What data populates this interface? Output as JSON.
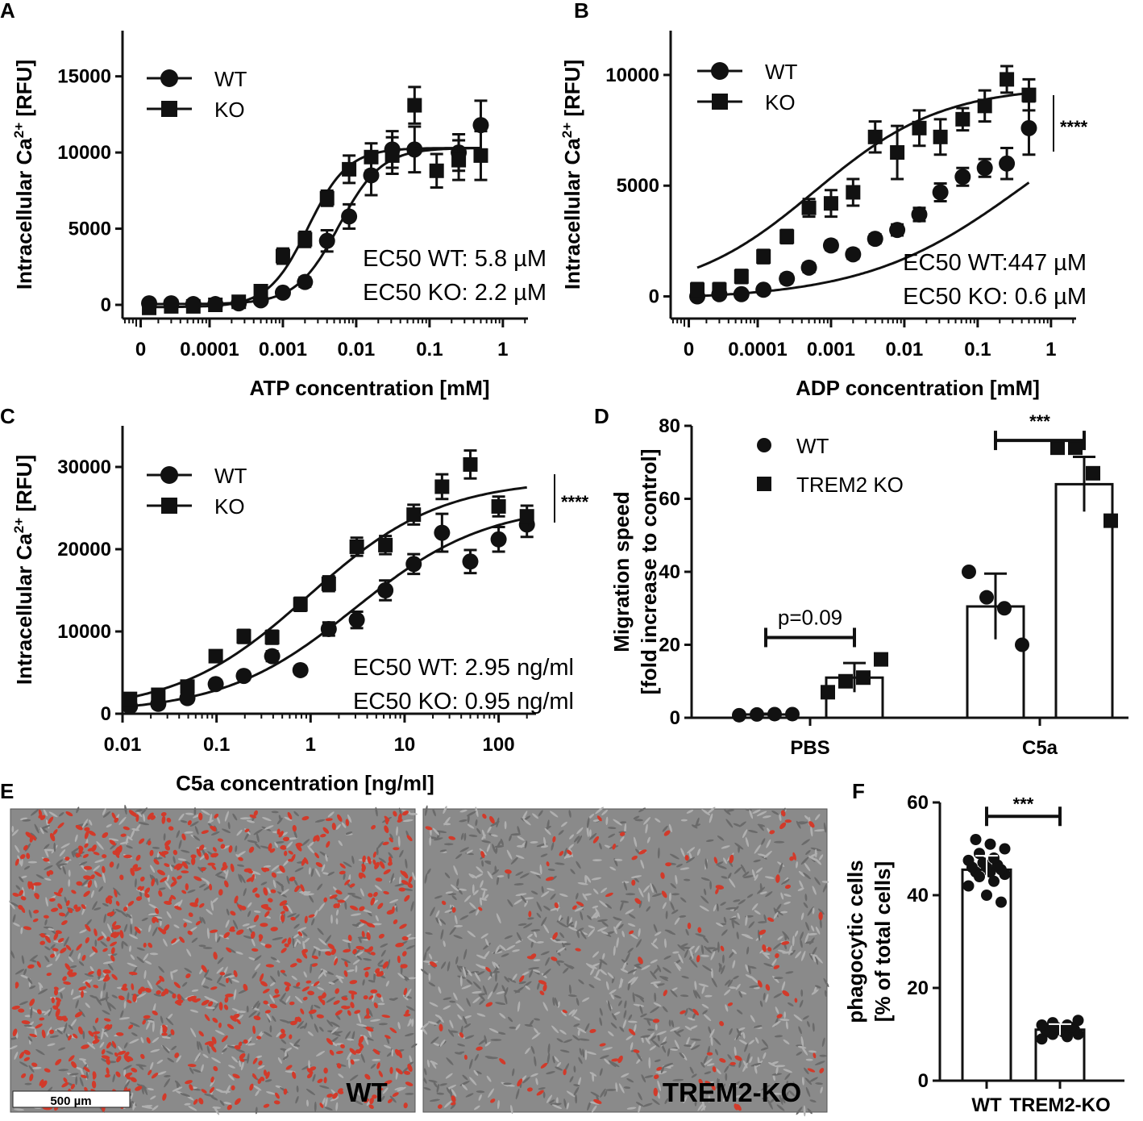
{
  "panel_letters": {
    "A": "A",
    "B": "B",
    "C": "C",
    "D": "D",
    "E": "E",
    "F": "F"
  },
  "chart_data": [
    {
      "id": "A",
      "type": "scatter",
      "ylabel": "Intracellular Ca2+ [RFU]",
      "ylabel_parts": {
        "main": "Intracellular Ca",
        "sup": "2+",
        "unit": " [RFU]"
      },
      "xlabel": "ATP concentration [mM]",
      "xscale": "log",
      "xlim": [
        6.5e-06,
        2.2
      ],
      "ylim": [
        -900,
        18000
      ],
      "xticks": [
        {
          "v": 1.15e-05,
          "label": "0"
        },
        {
          "v": 0.0001,
          "label": "0.0001"
        },
        {
          "v": 0.001,
          "label": "0.001"
        },
        {
          "v": 0.01,
          "label": "0.01"
        },
        {
          "v": 0.1,
          "label": "0.1"
        },
        {
          "v": 1,
          "label": "1"
        }
      ],
      "yticks": [
        {
          "v": 0,
          "label": "0"
        },
        {
          "v": 5000,
          "label": "5000"
        },
        {
          "v": 10000,
          "label": "10000"
        },
        {
          "v": 15000,
          "label": "15000"
        }
      ],
      "annotations": [
        "EC50 WT: 5.8 µM",
        "EC50 KO: 2.2 µM"
      ],
      "significance": "",
      "series": [
        {
          "name": "WT",
          "marker": "circle",
          "x": [
            1.5e-05,
            3e-05,
            6e-05,
            0.00012,
            0.00025,
            0.0005,
            0.001,
            0.002,
            0.004,
            0.008,
            0.016,
            0.031,
            0.0625,
            0.25,
            0.5
          ],
          "y": [
            100,
            100,
            50,
            50,
            100,
            300,
            800,
            1500,
            4200,
            5800,
            8500,
            10200,
            10200,
            10000,
            11800
          ],
          "err": [
            200,
            200,
            200,
            200,
            200,
            200,
            200,
            300,
            700,
            800,
            1300,
            1200,
            1500,
            1200,
            1600
          ],
          "fit": {
            "bottom": 50,
            "top": 10300,
            "ec50": 0.0058,
            "hill": 1.5
          }
        },
        {
          "name": "KO",
          "marker": "square",
          "x": [
            1.5e-05,
            3e-05,
            6e-05,
            0.00012,
            0.00025,
            0.0005,
            0.001,
            0.002,
            0.004,
            0.008,
            0.016,
            0.031,
            0.0625,
            0.125,
            0.25,
            0.5
          ],
          "y": [
            -200,
            -100,
            -100,
            0,
            200,
            900,
            3200,
            4300,
            7000,
            8900,
            9700,
            9800,
            13100,
            8800,
            9500,
            9800
          ],
          "err": [
            200,
            200,
            200,
            200,
            300,
            400,
            500,
            500,
            500,
            900,
            900,
            1200,
            1200,
            1100,
            1300,
            1600
          ],
          "fit": {
            "bottom": -150,
            "top": 10300,
            "ec50": 0.0022,
            "hill": 1.6
          }
        }
      ]
    },
    {
      "id": "B",
      "type": "scatter",
      "ylabel": "Intracellular Ca2+ [RFU]",
      "ylabel_parts": {
        "main": "Intracellular Ca",
        "sup": "2+",
        "unit": " [RFU]"
      },
      "xlabel": "ADP concentration [mM]",
      "xscale": "log",
      "xlim": [
        6.5e-06,
        2.2
      ],
      "ylim": [
        -1000,
        12000
      ],
      "xticks": [
        {
          "v": 1.15e-05,
          "label": "0"
        },
        {
          "v": 0.0001,
          "label": "0.0001"
        },
        {
          "v": 0.001,
          "label": "0.001"
        },
        {
          "v": 0.01,
          "label": "0.01"
        },
        {
          "v": 0.1,
          "label": "0.1"
        },
        {
          "v": 1,
          "label": "1"
        }
      ],
      "yticks": [
        {
          "v": 0,
          "label": "0"
        },
        {
          "v": 5000,
          "label": "5000"
        },
        {
          "v": 10000,
          "label": "10000"
        }
      ],
      "annotations": [
        "EC50 WT:447 µM",
        "EC50 KO: 0.6 µM"
      ],
      "significance": "****",
      "series": [
        {
          "name": "WT",
          "marker": "circle",
          "x": [
            1.5e-05,
            3e-05,
            6e-05,
            0.00012,
            0.00025,
            0.0005,
            0.001,
            0.002,
            0.004,
            0.008,
            0.016,
            0.031,
            0.0625,
            0.125,
            0.25,
            0.5
          ],
          "y": [
            0,
            100,
            100,
            300,
            800,
            1300,
            2300,
            1900,
            2600,
            3000,
            3700,
            4700,
            5400,
            5800,
            6000,
            7600
          ],
          "err": [
            150,
            150,
            150,
            150,
            200,
            200,
            200,
            200,
            200,
            250,
            300,
            400,
            400,
            400,
            700,
            1200
          ],
          "fit": {
            "bottom": -150,
            "top": 10200,
            "ec50": 0.447,
            "hill": 0.4
          }
        },
        {
          "name": "KO",
          "marker": "square",
          "x": [
            1.5e-05,
            3e-05,
            6e-05,
            0.00012,
            0.00025,
            0.0005,
            0.001,
            0.002,
            0.004,
            0.008,
            0.016,
            0.031,
            0.0625,
            0.125,
            0.25,
            0.5
          ],
          "y": [
            300,
            300,
            900,
            1800,
            2700,
            4000,
            4200,
            4700,
            7200,
            6500,
            7600,
            7200,
            8000,
            8600,
            9800,
            9100
          ],
          "err": [
            300,
            300,
            300,
            300,
            300,
            400,
            600,
            600,
            700,
            1200,
            800,
            800,
            500,
            700,
            600,
            700
          ],
          "fit": {
            "bottom": 0,
            "top": 9500,
            "ec50": 0.0006,
            "hill": 0.5
          }
        }
      ]
    },
    {
      "id": "C",
      "type": "scatter",
      "ylabel": "Intracellular Ca2+ [RFU]",
      "ylabel_parts": {
        "main": "Intracellular Ca",
        "sup": "2+",
        "unit": " [RFU]"
      },
      "xlabel": "C5a concentration [ng/ml]",
      "xscale": "log",
      "xlim": [
        0.01,
        250
      ],
      "ylim": [
        0,
        35000
      ],
      "xticks": [
        {
          "v": 0.01,
          "label": "0.01"
        },
        {
          "v": 0.1,
          "label": "0.1"
        },
        {
          "v": 1,
          "label": "1"
        },
        {
          "v": 10,
          "label": "10"
        },
        {
          "v": 100,
          "label": "100"
        }
      ],
      "yticks": [
        {
          "v": 0,
          "label": "0"
        },
        {
          "v": 10000,
          "label": "10000"
        },
        {
          "v": 20000,
          "label": "20000"
        },
        {
          "v": 30000,
          "label": "30000"
        }
      ],
      "annotations": [
        "EC50 WT: 2.95 ng/ml",
        "EC50 KO: 0.95 ng/ml"
      ],
      "significance": "****",
      "series": [
        {
          "name": "WT",
          "marker": "circle",
          "x": [
            0.012,
            0.024,
            0.049,
            0.098,
            0.195,
            0.39,
            0.78,
            1.56,
            3.1,
            6.25,
            12.5,
            25,
            50,
            100,
            200
          ],
          "y": [
            900,
            1200,
            1900,
            3600,
            4600,
            7000,
            5300,
            10300,
            11400,
            15000,
            18200,
            22000,
            18500,
            21200,
            23000
          ],
          "err": [
            500,
            500,
            500,
            500,
            500,
            600,
            500,
            800,
            1000,
            1200,
            1200,
            2300,
            1400,
            1500,
            1500
          ],
          "fit": {
            "bottom": 100,
            "top": 25500,
            "ec50": 2.95,
            "hill": 0.62
          }
        },
        {
          "name": "KO",
          "marker": "square",
          "x": [
            0.012,
            0.024,
            0.049,
            0.098,
            0.195,
            0.39,
            0.78,
            1.56,
            3.1,
            6.25,
            12.5,
            25,
            50,
            100,
            200
          ],
          "y": [
            1800,
            2300,
            3300,
            7000,
            9400,
            9300,
            13300,
            15800,
            20300,
            20500,
            24200,
            27600,
            30300,
            25200,
            24000
          ],
          "err": [
            500,
            500,
            500,
            600,
            800,
            800,
            800,
            900,
            1100,
            1100,
            1200,
            1500,
            1700,
            1200,
            1300
          ],
          "fit": {
            "bottom": 200,
            "top": 28500,
            "ec50": 0.95,
            "hill": 0.62
          }
        }
      ]
    },
    {
      "id": "D",
      "type": "bar",
      "ylabel": "Migration speed [fold increase to control]",
      "ylabel_lines": [
        "Migration speed",
        "[fold increase to control]"
      ],
      "xlabel": "",
      "categories": [
        "PBS",
        "C5a"
      ],
      "ylim": [
        0,
        80
      ],
      "yticks": [
        {
          "v": 0,
          "label": "0"
        },
        {
          "v": 20,
          "label": "20"
        },
        {
          "v": 40,
          "label": "40"
        },
        {
          "v": 60,
          "label": "60"
        },
        {
          "v": 80,
          "label": "80"
        }
      ],
      "series": [
        {
          "name": "WT",
          "marker": "circle",
          "values": [
            0.9,
            30.5
          ],
          "err": [
            0.2,
            9.0
          ],
          "points": [
            [
              0.7,
              0.9,
              1.0,
              1.0
            ],
            [
              40,
              33,
              30,
              20
            ]
          ]
        },
        {
          "name": "TREM2 KO",
          "marker": "square",
          "values": [
            11,
            64
          ],
          "err": [
            4,
            7.5
          ],
          "points": [
            [
              7,
              10,
              11,
              16
            ],
            [
              74,
              74,
              67,
              54
            ]
          ]
        }
      ],
      "comparisons": [
        {
          "category": "PBS",
          "label": "p=0.09",
          "y": 22
        },
        {
          "category": "C5a",
          "label": "***",
          "y": 76
        }
      ]
    },
    {
      "id": "F",
      "type": "bar",
      "ylabel": "phagocytic cells [% of total cells]",
      "ylabel_lines": [
        "phagocytic cells",
        "[% of total cells]"
      ],
      "xlabel": "",
      "categories": [
        "WT",
        "TREM2-KO"
      ],
      "ylim": [
        0,
        60
      ],
      "yticks": [
        {
          "v": 0,
          "label": "0"
        },
        {
          "v": 20,
          "label": "20"
        },
        {
          "v": 40,
          "label": "40"
        },
        {
          "v": 60,
          "label": "60"
        }
      ],
      "series": [
        {
          "name": "phagocytic cells",
          "values": [
            45.5,
            11
          ],
          "err": [
            3,
            1.2
          ],
          "points": [
            [
              42,
              43,
              44,
              44.5,
              45,
              45,
              45.5,
              46,
              46,
              46.5,
              47,
              47.5,
              48,
              49,
              50,
              51,
              52,
              38.5,
              40
            ],
            [
              9,
              9.5,
              10,
              10,
              10.5,
              10.5,
              11,
              11,
              11,
              11.5,
              11.5,
              12,
              12,
              12.5,
              13
            ]
          ]
        }
      ],
      "comparisons": [
        {
          "label": "***",
          "y": 57
        }
      ]
    }
  ],
  "microscopy": {
    "panel_letter": "E",
    "left_label": "WT",
    "right_label": "TREM2-KO",
    "scalebar_label": "500 µm",
    "background_color": "#8a8a8a",
    "cell_color": "#d23a2a"
  }
}
